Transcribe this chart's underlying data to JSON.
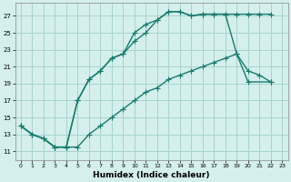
{
  "xlabel": "Humidex (Indice chaleur)",
  "background_color": "#d4efec",
  "grid_color": "#a8d4cf",
  "line_color": "#1a7a6e",
  "xlim": [
    -0.5,
    23.5
  ],
  "ylim": [
    10.0,
    28.5
  ],
  "xticks": [
    0,
    1,
    2,
    3,
    4,
    5,
    6,
    7,
    8,
    9,
    10,
    11,
    12,
    13,
    14,
    15,
    16,
    17,
    18,
    19,
    20,
    21,
    22,
    23
  ],
  "yticks": [
    11,
    13,
    15,
    17,
    19,
    21,
    23,
    25,
    27
  ],
  "line1_x": [
    0,
    1,
    2,
    3,
    4,
    5,
    6,
    7,
    8,
    9,
    10,
    11,
    12,
    13,
    14,
    15,
    16,
    17,
    18,
    19,
    20,
    21,
    22
  ],
  "line1_y": [
    14,
    13,
    12.5,
    11.5,
    11.5,
    17,
    19.5,
    20.5,
    22,
    22.5,
    25,
    26,
    26.5,
    27.5,
    27.5,
    27.0,
    27.2,
    27.2,
    27.2,
    27.2,
    27.2,
    27.2,
    27.2
  ],
  "line2_x": [
    0,
    1,
    2,
    3,
    4,
    5,
    6,
    7,
    8,
    9,
    10,
    11,
    12,
    13,
    14,
    15,
    16,
    17,
    18,
    19,
    20,
    21,
    22
  ],
  "line2_y": [
    14,
    13,
    12.5,
    11.5,
    11.5,
    17,
    19.5,
    20.5,
    22,
    22.5,
    24,
    25,
    26.5,
    27.5,
    27.5,
    27.0,
    27.2,
    27.2,
    27.2,
    22.5,
    20.5,
    20.0,
    19.2
  ],
  "line3_x": [
    0,
    1,
    2,
    3,
    4,
    5,
    6,
    7,
    8,
    9,
    10,
    11,
    12,
    13,
    14,
    15,
    16,
    17,
    18,
    19,
    20,
    22
  ],
  "line3_y": [
    14,
    13,
    12.5,
    11.5,
    11.5,
    11.5,
    13.0,
    14.0,
    15.0,
    16.0,
    17.0,
    18.0,
    18.5,
    19.5,
    20.0,
    20.5,
    21.0,
    21.5,
    22.0,
    22.5,
    19.2,
    19.2
  ],
  "marker_size": 2.5,
  "line_width": 1.0,
  "tick_fontsize": 5.0,
  "xlabel_fontsize": 6.5
}
